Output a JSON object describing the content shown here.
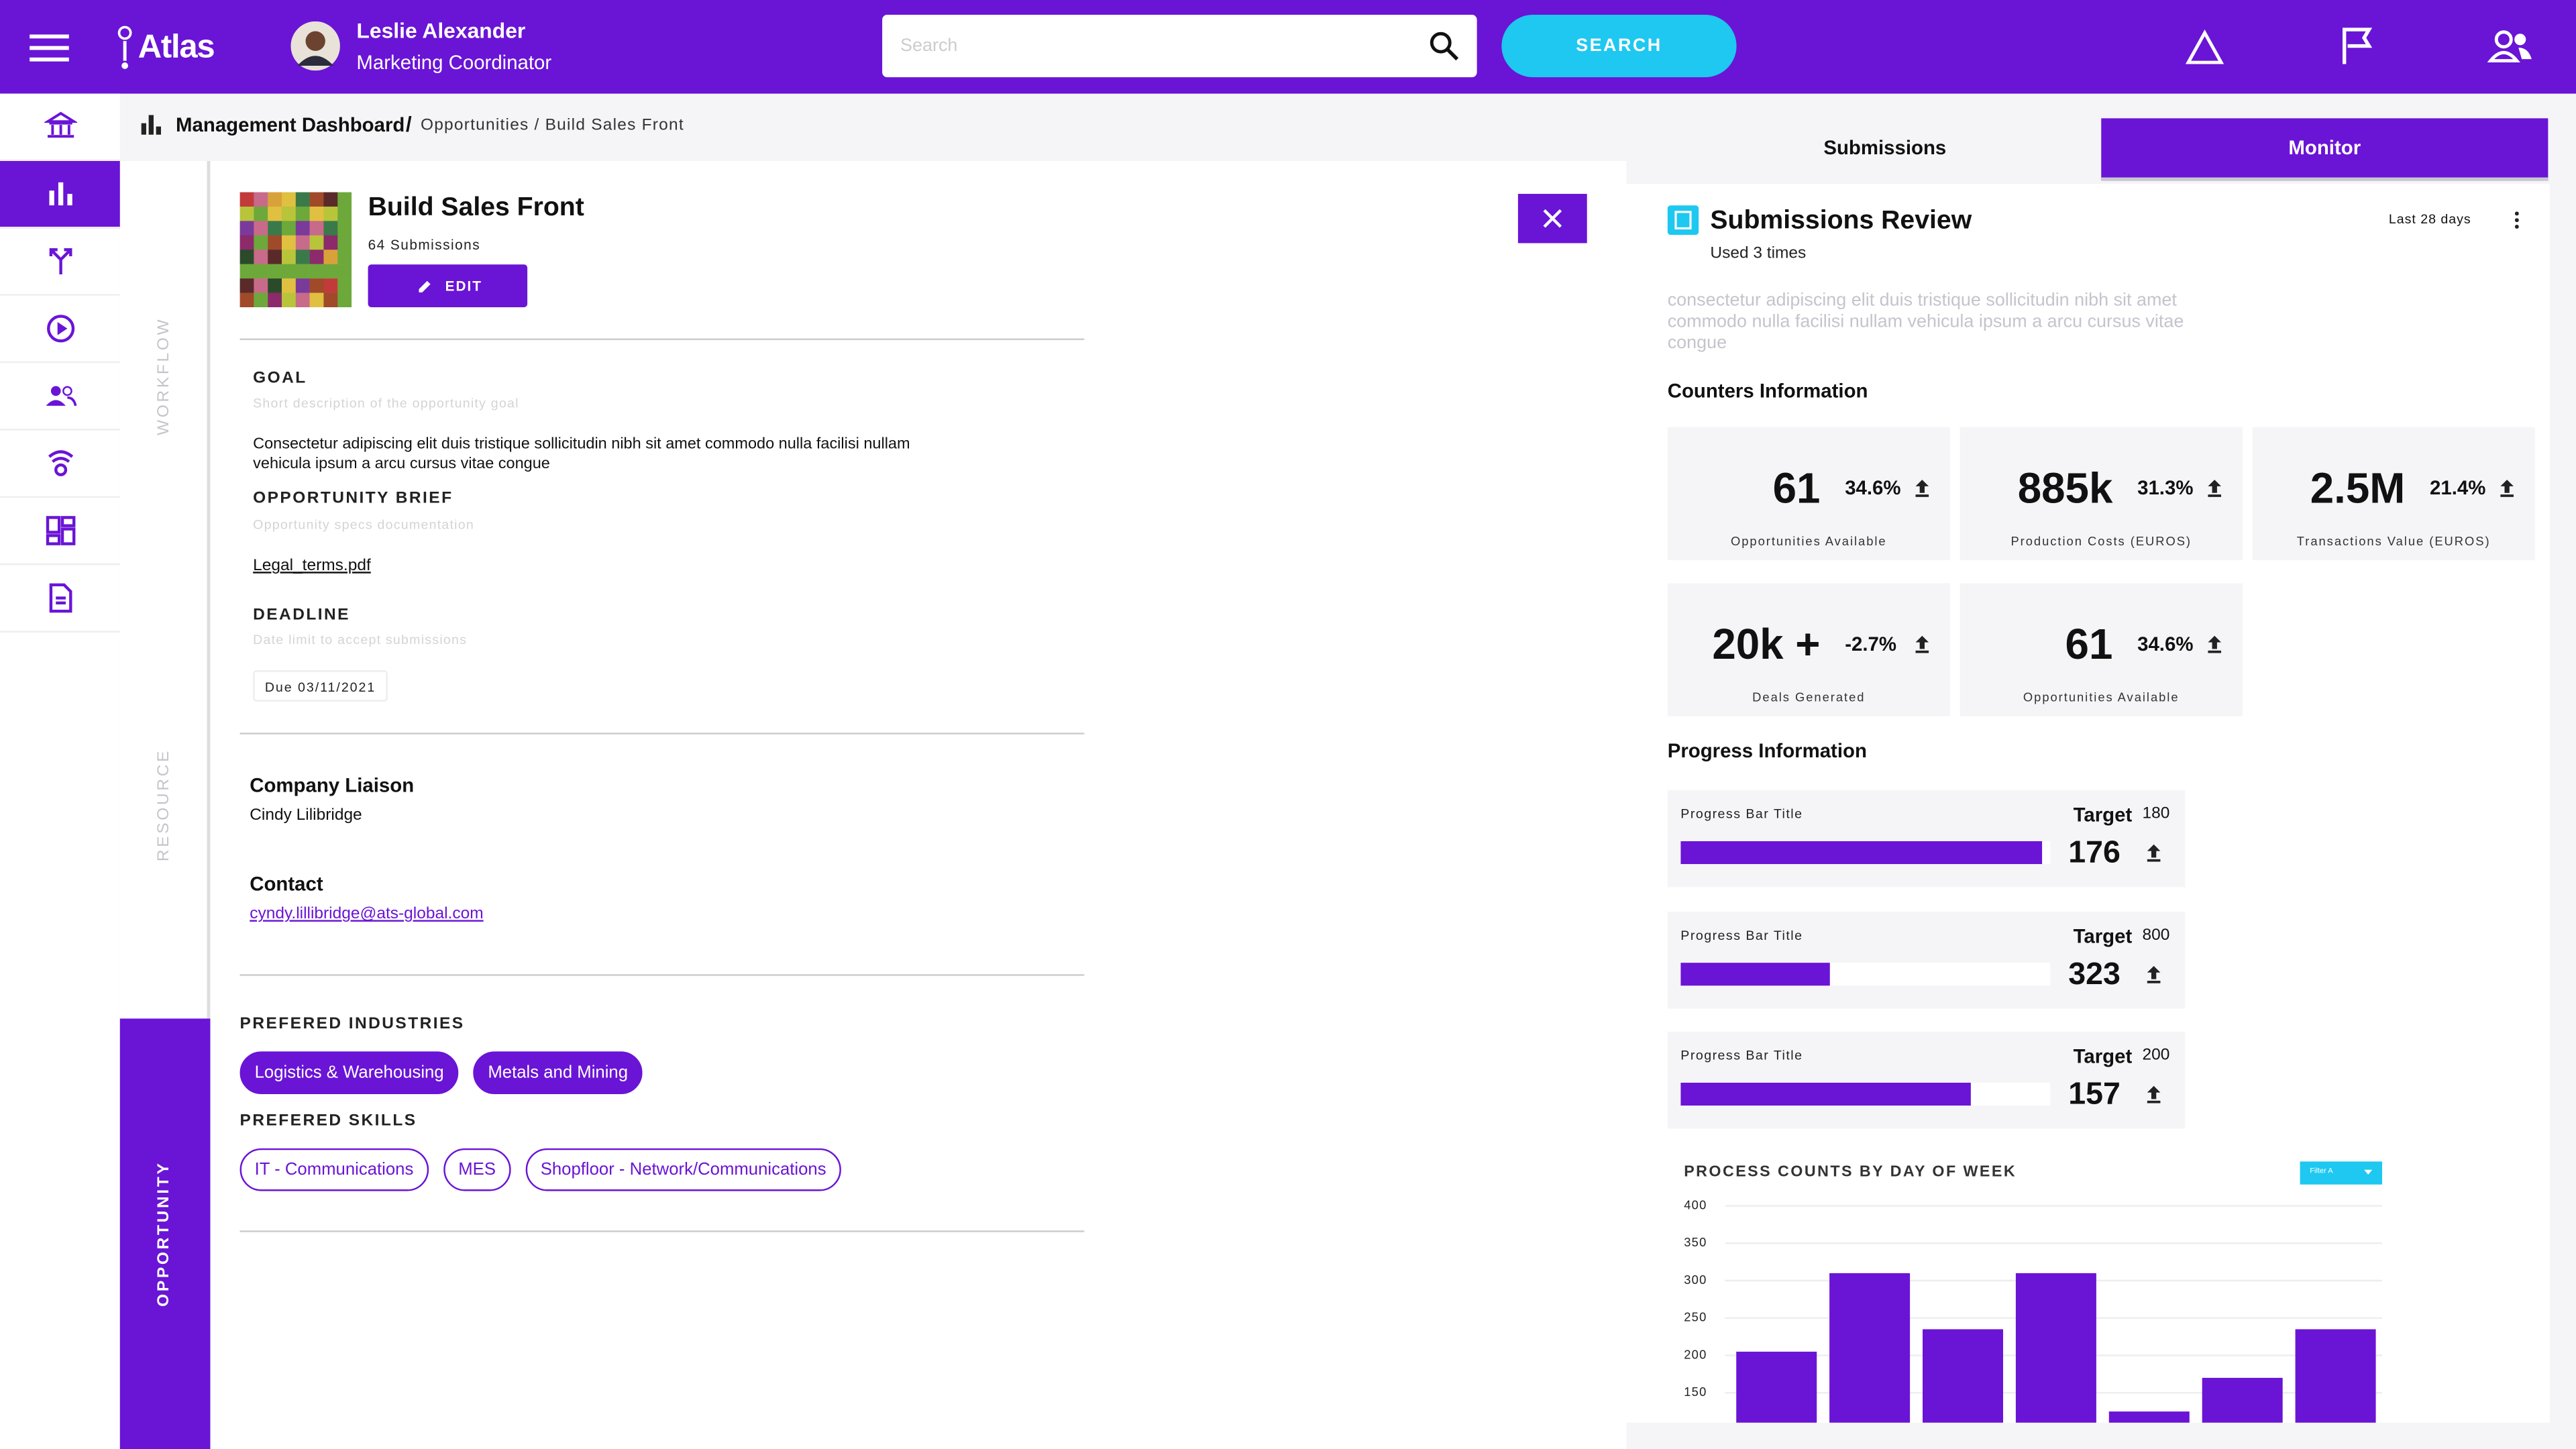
{
  "header": {
    "app_name": "Atlas",
    "user_name": "Leslie Alexander",
    "user_role": "Marketing Coordinator",
    "search_placeholder": "Search",
    "search_button": "SEARCH"
  },
  "breadcrumb": {
    "title": "Management Dashboard",
    "separator": "/",
    "trail": "Opportunities / Build Sales Front"
  },
  "side_tabs": [
    "WORKFLOW",
    "RESOURCE",
    "OPPORTUNITY"
  ],
  "opportunity": {
    "title": "Build Sales Front",
    "submissions": "64 Submissions",
    "edit": "EDIT",
    "goal": {
      "label": "GOAL",
      "hint": "Short description of the opportunity goal",
      "text": "Consectetur adipiscing elit duis tristique sollicitudin nibh sit amet commodo nulla facilisi nullam vehicula ipsum a arcu cursus vitae congue"
    },
    "brief": {
      "label": "OPPORTUNITY BRIEF",
      "hint": "Opportunity specs documentation",
      "file": "Legal_terms.pdf"
    },
    "deadline": {
      "label": "DEADLINE",
      "hint": "Date limit to accept submissions",
      "due": "Due 03/11/2021"
    },
    "liaison": {
      "label": "Company Liaison",
      "name": "Cindy Lilibridge"
    },
    "contact": {
      "label": "Contact",
      "email": "cyndy.lillibridge@ats-global.com"
    },
    "industries": {
      "label": "PREFERED INDUSTRIES",
      "items": [
        "Logistics & Warehousing",
        "Metals and Mining"
      ]
    },
    "skills": {
      "label": "PREFERED SKILLS",
      "items": [
        "IT - Communications",
        "MES",
        "Shopfloor - Network/Communications"
      ]
    }
  },
  "right_tabs": [
    "Submissions",
    "Monitor"
  ],
  "review": {
    "title": "Submissions Review",
    "used": "Used 3 times",
    "period": "Last 28 days",
    "description": "consectetur adipiscing elit duis tristique sollicitudin nibh sit amet commodo nulla facilisi nullam vehicula ipsum a arcu cursus vitae congue"
  },
  "counters": {
    "title": "Counters Information",
    "items": [
      {
        "value": "61",
        "change": "34.6%",
        "label": "Opportunities Available"
      },
      {
        "value": "885k",
        "change": "31.3%",
        "label": "Production Costs (EUROS)"
      },
      {
        "value": "2.5M",
        "change": "21.4%",
        "label": "Transactions Value (EUROS)"
      },
      {
        "value": "20k +",
        "change": "-2.7%",
        "label": "Deals Generated"
      },
      {
        "value": "61",
        "change": "34.6%",
        "label": "Opportunities Available"
      }
    ]
  },
  "progress": {
    "title": "Progress Information",
    "items": [
      {
        "label": "Progress Bar Title",
        "target_label": "Target",
        "target": 180,
        "value": 176
      },
      {
        "label": "Progress Bar Title",
        "target_label": "Target",
        "target": 800,
        "value": 323
      },
      {
        "label": "Progress Bar Title",
        "target_label": "Target",
        "target": 200,
        "value": 157
      }
    ]
  },
  "chart_data": {
    "type": "bar",
    "title": "PROCESS COUNTS BY DAY OF WEEK",
    "filter": "Filter A",
    "color": "#6a14d6",
    "categories": [
      null,
      null,
      null,
      null,
      null,
      null,
      null
    ],
    "values": [
      205,
      310,
      235,
      310,
      125,
      170,
      235
    ],
    "ylim": [
      110,
      400
    ],
    "yticks": [
      150,
      200,
      250,
      300,
      350,
      400
    ],
    "grid": true
  }
}
